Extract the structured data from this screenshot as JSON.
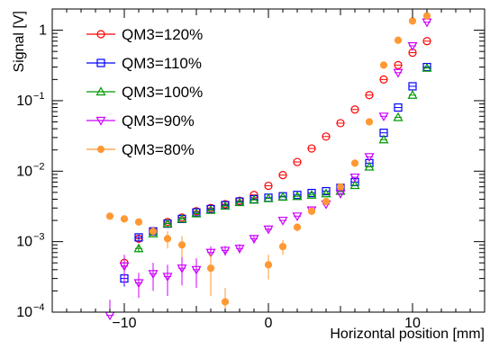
{
  "chart_data": {
    "type": "scatter",
    "title": "",
    "xlabel": "Horizontal position [mm]",
    "ylabel": "Signal [V]",
    "xlim": [
      -15,
      15
    ],
    "ylim": [
      0.0001,
      2
    ],
    "yscale": "log",
    "grid": false,
    "legend_position": "top-left",
    "x_ticks": [
      {
        "value": -10,
        "label": "−10"
      },
      {
        "value": 0,
        "label": "0"
      },
      {
        "value": 10,
        "label": "10"
      }
    ],
    "y_ticks": [
      {
        "value": 0.0001,
        "mantissa": "10",
        "exponent": "−4"
      },
      {
        "value": 0.001,
        "mantissa": "10",
        "exponent": "−3"
      },
      {
        "value": 0.01,
        "mantissa": "10",
        "exponent": "−2"
      },
      {
        "value": 0.1,
        "mantissa": "10",
        "exponent": "−1"
      },
      {
        "value": 1,
        "mantissa": "1",
        "exponent": ""
      }
    ],
    "series": [
      {
        "name": "QM3=120%",
        "color": "#ff0000",
        "marker": "circle-open",
        "points": [
          {
            "x": -10,
            "y": 0.0005,
            "err": 8e-05
          },
          {
            "x": -9,
            "y": 0.0011,
            "err": 0.0001
          },
          {
            "x": -8,
            "y": 0.0014
          },
          {
            "x": -7,
            "y": 0.0019
          },
          {
            "x": -6,
            "y": 0.0022
          },
          {
            "x": -5,
            "y": 0.0027
          },
          {
            "x": -4,
            "y": 0.003
          },
          {
            "x": -3,
            "y": 0.0034
          },
          {
            "x": -2,
            "y": 0.0038
          },
          {
            "x": -1,
            "y": 0.0046
          },
          {
            "x": 0,
            "y": 0.0062
          },
          {
            "x": 1,
            "y": 0.0088
          },
          {
            "x": 2,
            "y": 0.0135
          },
          {
            "x": 3,
            "y": 0.021
          },
          {
            "x": 4,
            "y": 0.031
          },
          {
            "x": 5,
            "y": 0.048
          },
          {
            "x": 6,
            "y": 0.075
          },
          {
            "x": 7,
            "y": 0.12
          },
          {
            "x": 8,
            "y": 0.2
          },
          {
            "x": 9,
            "y": 0.32
          },
          {
            "x": 10,
            "y": 0.48
          },
          {
            "x": 11,
            "y": 0.7
          }
        ]
      },
      {
        "name": "QM3=110%",
        "color": "#0000ff",
        "marker": "square-open",
        "points": [
          {
            "x": -10,
            "y": 0.0003,
            "err": 7e-05
          },
          {
            "x": -9,
            "y": 0.00115,
            "err": 0.0001
          },
          {
            "x": -8,
            "y": 0.0014
          },
          {
            "x": -7,
            "y": 0.0018
          },
          {
            "x": -6,
            "y": 0.0021
          },
          {
            "x": -5,
            "y": 0.0026
          },
          {
            "x": -4,
            "y": 0.0029
          },
          {
            "x": -3,
            "y": 0.0033
          },
          {
            "x": -2,
            "y": 0.0037
          },
          {
            "x": -1,
            "y": 0.004
          },
          {
            "x": 0,
            "y": 0.0042
          },
          {
            "x": 1,
            "y": 0.0044
          },
          {
            "x": 2,
            "y": 0.0046
          },
          {
            "x": 3,
            "y": 0.0049
          },
          {
            "x": 4,
            "y": 0.0052
          },
          {
            "x": 5,
            "y": 0.0058
          },
          {
            "x": 6,
            "y": 0.007
          },
          {
            "x": 7,
            "y": 0.013
          },
          {
            "x": 8,
            "y": 0.035
          },
          {
            "x": 9,
            "y": 0.08
          },
          {
            "x": 10,
            "y": 0.16
          },
          {
            "x": 11,
            "y": 0.3
          }
        ]
      },
      {
        "name": "QM3=100%",
        "color": "#009900",
        "marker": "triangle-up-open",
        "points": [
          {
            "x": -9,
            "y": 0.0008,
            "err": 0.0001
          },
          {
            "x": -8,
            "y": 0.0013
          },
          {
            "x": -7,
            "y": 0.0018
          },
          {
            "x": -6,
            "y": 0.0021
          },
          {
            "x": -5,
            "y": 0.0025
          },
          {
            "x": -4,
            "y": 0.0028
          },
          {
            "x": -3,
            "y": 0.0032
          },
          {
            "x": -2,
            "y": 0.0036
          },
          {
            "x": -1,
            "y": 0.0039
          },
          {
            "x": 0,
            "y": 0.0041
          },
          {
            "x": 1,
            "y": 0.0043
          },
          {
            "x": 2,
            "y": 0.0044
          },
          {
            "x": 3,
            "y": 0.0046
          },
          {
            "x": 4,
            "y": 0.0048
          },
          {
            "x": 5,
            "y": 0.0052
          },
          {
            "x": 6,
            "y": 0.0063
          },
          {
            "x": 7,
            "y": 0.0115
          },
          {
            "x": 8,
            "y": 0.028
          },
          {
            "x": 9,
            "y": 0.058
          },
          {
            "x": 10,
            "y": 0.12
          },
          {
            "x": 11,
            "y": 0.29
          }
        ]
      },
      {
        "name": "QM3=90%",
        "color": "#cc00ff",
        "marker": "triangle-down-open",
        "points": [
          {
            "x": -11,
            "y": 9e-05,
            "err": 6e-05
          },
          {
            "x": -10,
            "y": 0.00045,
            "err": 0.0002
          },
          {
            "x": -9,
            "y": 0.00026,
            "err": 0.0001
          },
          {
            "x": -8,
            "y": 0.00035,
            "err": 0.00015
          },
          {
            "x": -7,
            "y": 0.00032,
            "err": 0.00015
          },
          {
            "x": -6,
            "y": 0.00042,
            "err": 0.00018
          },
          {
            "x": -5,
            "y": 0.0004,
            "err": 0.00018
          },
          {
            "x": -4,
            "y": 0.0007,
            "err": 0.00015
          },
          {
            "x": -3,
            "y": 0.00075,
            "err": 0.00012
          },
          {
            "x": -2,
            "y": 0.0008,
            "err": 0.00012
          },
          {
            "x": -1,
            "y": 0.0011,
            "err": 0.0001
          },
          {
            "x": 0,
            "y": 0.0015,
            "err": 0.0001
          },
          {
            "x": 1,
            "y": 0.002
          },
          {
            "x": 2,
            "y": 0.0023
          },
          {
            "x": 3,
            "y": 0.0028
          },
          {
            "x": 4,
            "y": 0.0034
          },
          {
            "x": 5,
            "y": 0.0048
          },
          {
            "x": 6,
            "y": 0.0082
          },
          {
            "x": 7,
            "y": 0.016
          },
          {
            "x": 8,
            "y": 0.06
          },
          {
            "x": 9,
            "y": 0.25
          },
          {
            "x": 10,
            "y": 0.6
          },
          {
            "x": 11,
            "y": 1.3
          }
        ]
      },
      {
        "name": "QM3=80%",
        "color": "#ff9933",
        "marker": "circle-filled",
        "points": [
          {
            "x": -11,
            "y": 0.0023
          },
          {
            "x": -10,
            "y": 0.0021
          },
          {
            "x": -9,
            "y": 0.0019
          },
          {
            "x": -8,
            "y": 0.0014,
            "err": 0.0002
          },
          {
            "x": -7,
            "y": 0.0011,
            "err": 0.0003
          },
          {
            "x": -6,
            "y": 0.0009,
            "err": 0.0003
          },
          {
            "x": -4,
            "y": 0.00042,
            "err": 0.00025
          },
          {
            "x": -3,
            "y": 0.00014,
            "err": 8e-05
          },
          {
            "x": 0,
            "y": 0.00047,
            "err": 0.00018
          },
          {
            "x": 1,
            "y": 0.00085,
            "err": 0.0002
          },
          {
            "x": 2,
            "y": 0.0016,
            "err": 0.0002
          },
          {
            "x": 3,
            "y": 0.0027
          },
          {
            "x": 4,
            "y": 0.0037
          },
          {
            "x": 5,
            "y": 0.006
          },
          {
            "x": 6,
            "y": 0.013
          },
          {
            "x": 7,
            "y": 0.05
          },
          {
            "x": 8,
            "y": 0.32
          },
          {
            "x": 9,
            "y": 0.72
          },
          {
            "x": 10,
            "y": 1.35
          },
          {
            "x": 11,
            "y": 1.6
          }
        ]
      }
    ]
  }
}
